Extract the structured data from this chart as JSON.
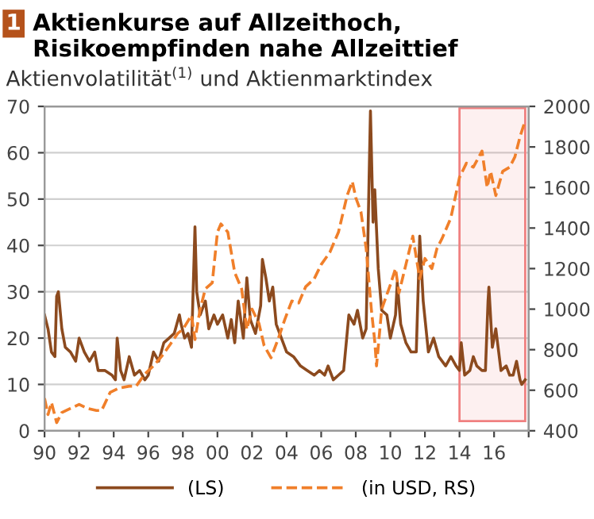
{
  "chart_data": {
    "type": "line",
    "title": "Aktienkurse auf Allzeithoch, Risikoempfinden nahe Allzeittief",
    "subtitle": "Aktienvolatilität$^{(1)}$ und Aktienmarktindex",
    "annotations": [
      "1"
    ],
    "xlim": [
      1990,
      2018
    ],
    "xticks": [
      {
        "value": 1990,
        "label": "90"
      },
      {
        "value": 1992,
        "label": "92"
      },
      {
        "value": 1994,
        "label": "94"
      },
      {
        "value": 1996,
        "label": "96"
      },
      {
        "value": 1998,
        "label": "98"
      },
      {
        "value": 2000,
        "label": "00"
      },
      {
        "value": 2002,
        "label": "02"
      },
      {
        "value": 2004,
        "label": "04"
      },
      {
        "value": 2006,
        "label": "06"
      },
      {
        "value": 2008,
        "label": "08"
      },
      {
        "value": 2010,
        "label": "10"
      },
      {
        "value": 2012,
        "label": "12"
      },
      {
        "value": 2014,
        "label": "14"
      },
      {
        "value": 2016,
        "label": "16"
      },
      {
        "value": 2018,
        "label": null
      }
    ],
    "ylim": [
      0,
      70
    ],
    "yticks": [
      0,
      10,
      20,
      30,
      40,
      50,
      60,
      70
    ],
    "y2lim": [
      400,
      2000
    ],
    "y2ticks": [
      400,
      600,
      800,
      1000,
      1200,
      1400,
      1600,
      1800,
      2000
    ],
    "grid": "y",
    "legend": "bottom",
    "bands": [
      {
        "axis": "x",
        "from": 2014,
        "to": 2017.8,
        "color": "#f08080"
      }
    ],
    "series": [
      {
        "name": "(LS)",
        "color": "#8c4a1e",
        "line_style": "solid",
        "x": [
          1990.0,
          1990.2,
          1990.4,
          1990.6,
          1990.7,
          1990.8,
          1991.0,
          1991.2,
          1991.5,
          1991.8,
          1992.0,
          1992.3,
          1992.6,
          1992.9,
          1993.1,
          1993.5,
          1993.9,
          1994.1,
          1994.2,
          1994.4,
          1994.6,
          1994.9,
          1995.2,
          1995.5,
          1995.8,
          1996.0,
          1996.3,
          1996.6,
          1996.9,
          1997.2,
          1997.5,
          1997.8,
          1997.9,
          1998.1,
          1998.3,
          1998.5,
          1998.7,
          1998.8,
          1999.0,
          1999.3,
          1999.5,
          1999.8,
          2000.0,
          2000.3,
          2000.6,
          2000.8,
          2001.0,
          2001.2,
          2001.5,
          2001.7,
          2001.9,
          2002.2,
          2002.5,
          2002.6,
          2002.8,
          2003.0,
          2003.2,
          2003.4,
          2003.7,
          2004.0,
          2004.4,
          2004.8,
          2005.2,
          2005.6,
          2005.9,
          2006.2,
          2006.4,
          2006.7,
          2007.0,
          2007.3,
          2007.6,
          2007.9,
          2008.1,
          2008.4,
          2008.6,
          2008.8,
          2008.85,
          2009.0,
          2009.1,
          2009.3,
          2009.5,
          2009.8,
          2010.0,
          2010.3,
          2010.4,
          2010.6,
          2010.9,
          2011.2,
          2011.5,
          2011.7,
          2011.9,
          2012.2,
          2012.5,
          2012.8,
          2013.2,
          2013.5,
          2013.8,
          2014.0,
          2014.1,
          2014.3,
          2014.6,
          2014.8,
          2015.0,
          2015.3,
          2015.5,
          2015.65,
          2015.7,
          2015.9,
          2016.1,
          2016.4,
          2016.7,
          2016.9,
          2017.1,
          2017.3,
          2017.5,
          2017.6,
          2017.8
        ],
        "values": [
          25,
          22,
          17,
          16,
          29,
          30,
          22,
          18,
          17,
          15,
          20,
          17,
          15,
          17,
          13,
          13,
          12,
          11,
          20,
          13,
          11,
          16,
          12,
          13,
          11,
          12,
          17,
          15,
          19,
          20,
          21,
          25,
          23,
          20,
          21,
          18,
          44,
          30,
          25,
          28,
          22,
          25,
          23,
          25,
          20,
          24,
          19,
          28,
          20,
          33,
          24,
          21,
          27,
          37,
          33,
          28,
          31,
          23,
          20,
          17,
          16,
          14,
          13,
          12,
          13,
          12,
          14,
          11,
          12,
          13,
          25,
          23,
          26,
          20,
          22,
          60,
          69,
          45,
          52,
          35,
          26,
          25,
          20,
          25,
          32,
          23,
          19,
          17,
          17,
          42,
          28,
          17,
          20,
          16,
          14,
          16,
          14,
          13,
          19,
          12,
          13,
          16,
          14,
          13,
          13,
          28,
          31,
          18,
          22,
          13,
          14,
          12,
          12,
          15,
          11,
          10,
          11
        ]
      },
      {
        "name": "(in USD, RS)",
        "color": "#f07f2a",
        "line_style": "dashed",
        "axis": "y2",
        "x": [
          1990.0,
          1990.2,
          1990.4,
          1990.7,
          1991.0,
          1991.5,
          1992.0,
          1992.5,
          1993.0,
          1993.3,
          1993.8,
          1994.3,
          1994.9,
          1995.3,
          1995.8,
          1996.3,
          1996.8,
          1997.3,
          1997.7,
          1998.0,
          1998.5,
          1998.7,
          1999.0,
          1999.3,
          1999.7,
          2000.0,
          2000.2,
          2000.6,
          2001.0,
          2001.4,
          2001.7,
          2002.0,
          2002.4,
          2002.7,
          2003.1,
          2003.5,
          2003.9,
          2004.3,
          2004.7,
          2005.1,
          2005.6,
          2006.0,
          2006.5,
          2007.0,
          2007.5,
          2007.8,
          2008.0,
          2008.3,
          2008.6,
          2008.9,
          2009.1,
          2009.2,
          2009.5,
          2010.0,
          2010.3,
          2010.5,
          2010.9,
          2011.3,
          2011.7,
          2012.0,
          2012.4,
          2012.7,
          2013.0,
          2013.5,
          2014.0,
          2014.4,
          2014.8,
          2015.3,
          2015.6,
          2015.8,
          2016.1,
          2016.5,
          2016.9,
          2017.2,
          2017.5,
          2017.8
        ],
        "values": [
          560,
          480,
          540,
          440,
          490,
          510,
          530,
          510,
          500,
          500,
          590,
          610,
          620,
          620,
          680,
          720,
          770,
          830,
          880,
          900,
          970,
          850,
          1000,
          1100,
          1130,
          1380,
          1420,
          1380,
          1180,
          1100,
          900,
          1000,
          930,
          820,
          760,
          850,
          950,
          1040,
          1030,
          1110,
          1150,
          1220,
          1280,
          1380,
          1560,
          1630,
          1550,
          1480,
          1300,
          1000,
          840,
          720,
          1000,
          1120,
          1200,
          1080,
          1220,
          1360,
          1150,
          1250,
          1200,
          1300,
          1350,
          1450,
          1650,
          1720,
          1700,
          1780,
          1600,
          1680,
          1560,
          1680,
          1700,
          1750,
          1850,
          1930
        ]
      }
    ]
  }
}
